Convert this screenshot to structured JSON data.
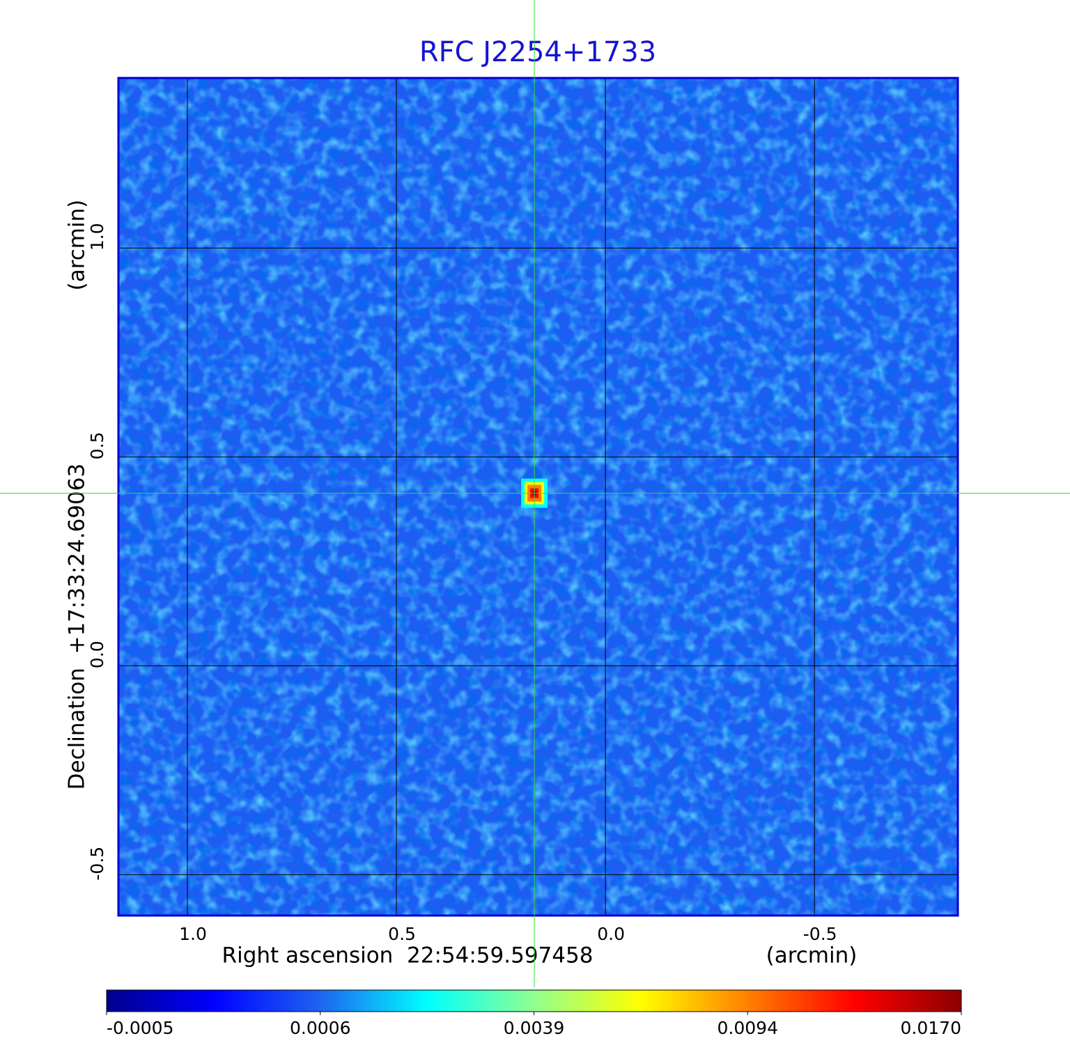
{
  "chart_data": {
    "type": "image",
    "title": "RFC J2254+1733",
    "xlabel": "Right ascension  22:54:59.597458",
    "xunit": "(arcmin)",
    "ylabel": "Declination  +17:33:24.69063",
    "yunit": "(arcmin)",
    "xlim": [
      1.165,
      -0.843
    ],
    "ylim": [
      -0.598,
      1.407
    ],
    "xticks": [
      {
        "value": 1,
        "label": "1.0"
      },
      0.5,
      {
        "value": 0,
        "label": "0.0"
      },
      -0.5
    ],
    "yticks": [
      {
        "value": 1,
        "label": "1.0"
      },
      0.5,
      {
        "value": 0,
        "label": "0.0"
      },
      -0.5
    ],
    "grid": true,
    "crosshair": {
      "x": 0.17,
      "y": 0.413,
      "color": "#33dd33"
    },
    "colorbar": {
      "ticks": [
        -0.0005,
        0.0006,
        0.0039,
        0.0094,
        {
          "value": 0.017,
          "label": "0.0170"
        }
      ],
      "colormap": [
        "#00008b",
        "#0000ff",
        "#1e64f0",
        "#00ffff",
        "#90ff90",
        "#ffff00",
        "#ff8000",
        "#ff0000",
        "#8b0000"
      ]
    }
  }
}
